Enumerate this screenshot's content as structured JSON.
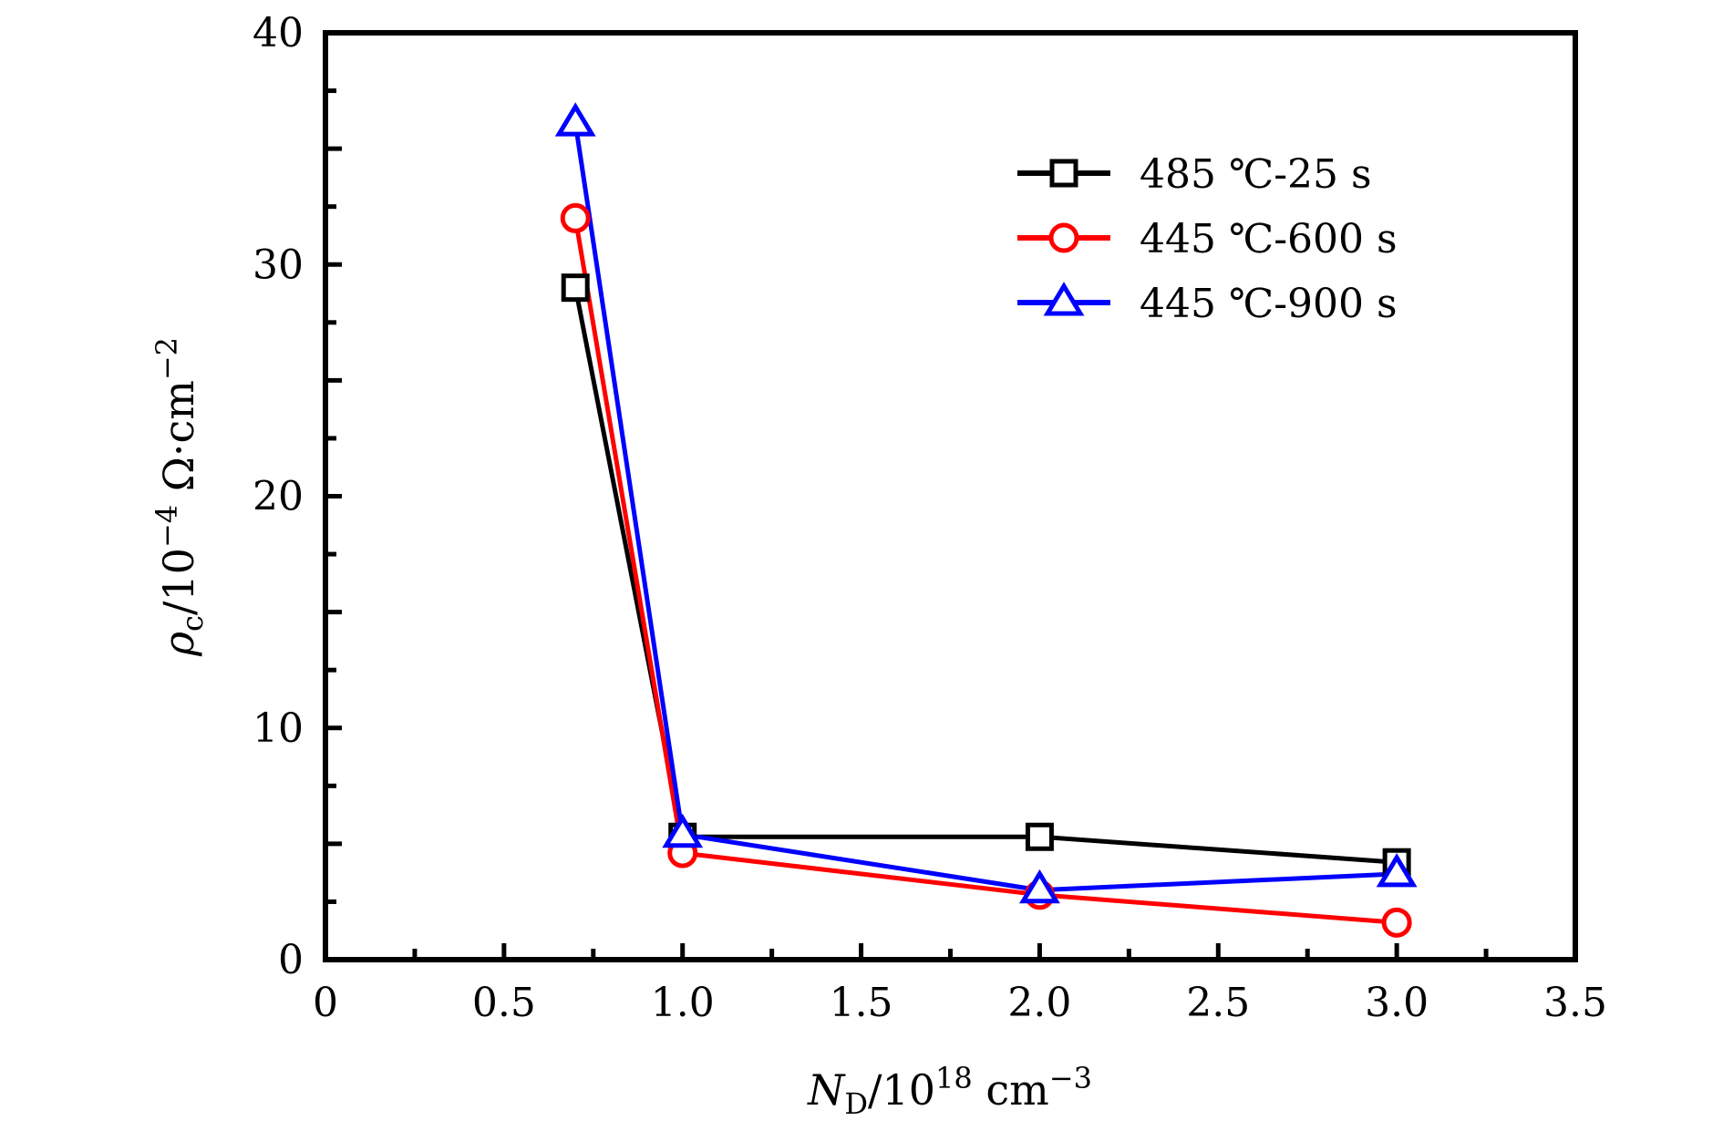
{
  "chart_data": {
    "type": "line",
    "title": "",
    "xlabel": {
      "main": "N",
      "sub": "D",
      "rest": "/10",
      "sup": "18",
      "unit": " cm",
      "unit_sup": "−3"
    },
    "ylabel": {
      "main": "ρ",
      "sub": "c",
      "rest": "/10",
      "sup": "−4",
      "unit": " Ω·cm",
      "unit_sup": "−2"
    },
    "xlim": [
      0,
      3.5
    ],
    "ylim": [
      0,
      40
    ],
    "xticks": [
      0,
      0.5,
      1.0,
      1.5,
      2.0,
      2.5,
      3.0,
      3.5
    ],
    "xtick_labels": [
      "0",
      "0.5",
      "1.0",
      "1.5",
      "2.0",
      "2.5",
      "3.0",
      "3.5"
    ],
    "xminor_step": 0.25,
    "yticks": [
      0,
      10,
      20,
      30,
      40
    ],
    "ytick_labels": [
      "0",
      "10",
      "20",
      "30",
      "40"
    ],
    "yminor_step": 2.5,
    "grid": false,
    "legend_position": "top-right",
    "x": [
      0.7,
      1.0,
      2.0,
      3.0
    ],
    "series": [
      {
        "name": "485 ℃-25 s",
        "color": "#000000",
        "marker": "square",
        "values": [
          29.0,
          5.3,
          5.3,
          4.2
        ]
      },
      {
        "name": "445 ℃-600 s",
        "color": "#ff0000",
        "marker": "circle",
        "values": [
          32.0,
          4.6,
          2.8,
          1.6
        ]
      },
      {
        "name": "445 ℃-900 s",
        "color": "#0000ff",
        "marker": "triangle",
        "values": [
          36.1,
          5.4,
          3.0,
          3.7
        ]
      }
    ]
  }
}
